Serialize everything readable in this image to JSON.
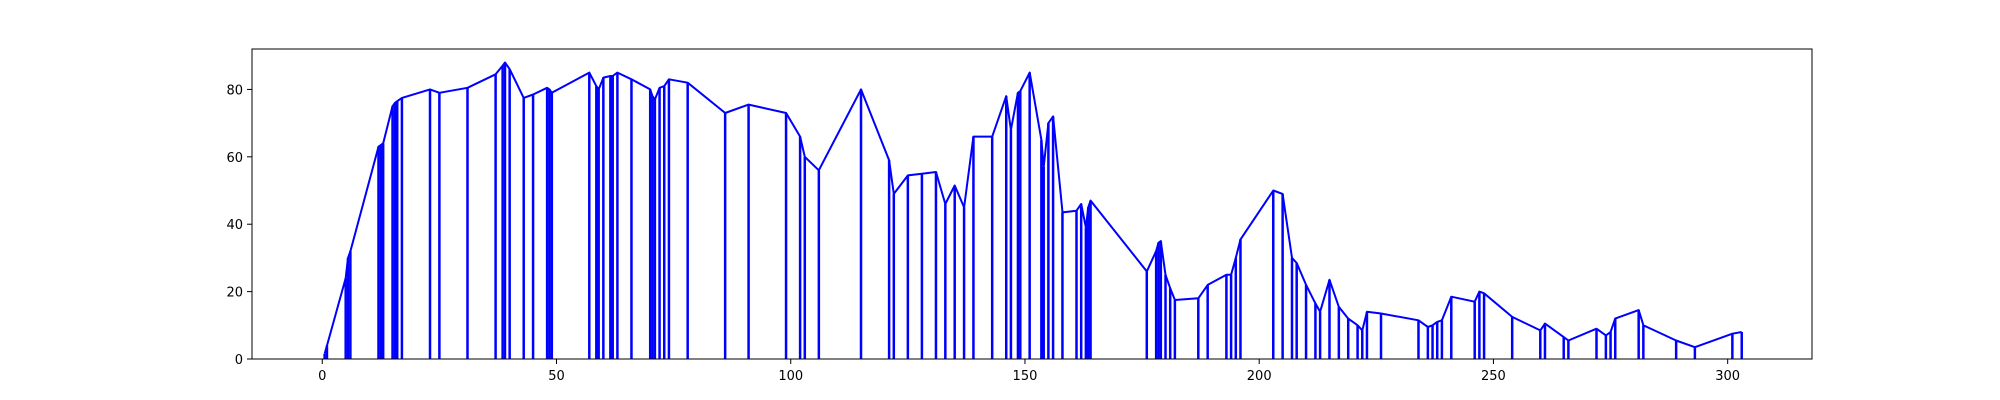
{
  "chart_data": {
    "type": "line",
    "title": "",
    "xlabel": "",
    "ylabel": "",
    "xlim": [
      -15,
      318
    ],
    "ylim": [
      0,
      92
    ],
    "x_ticks": [
      0,
      50,
      100,
      150,
      200,
      250,
      300
    ],
    "y_ticks": [
      0,
      20,
      40,
      60,
      80
    ],
    "grid": false,
    "legend": "none",
    "style": "vertical stems from y=0 to each point, connected by a polyline",
    "colors": {
      "series": "#0000ff",
      "axes": "#000000",
      "background": "#ffffff"
    },
    "series": [
      {
        "name": "",
        "points": [
          [
            0.5,
            1.5
          ],
          [
            1.0,
            4.0
          ],
          [
            5.0,
            24.0
          ],
          [
            5.5,
            30.0
          ],
          [
            6.0,
            32.0
          ],
          [
            12.0,
            63.0
          ],
          [
            12.5,
            63.5
          ],
          [
            13.0,
            64.0
          ],
          [
            15.0,
            75.0
          ],
          [
            15.5,
            76.0
          ],
          [
            16.0,
            76.5
          ],
          [
            17.0,
            77.5
          ],
          [
            23.0,
            80.0
          ],
          [
            25.0,
            79.0
          ],
          [
            31.0,
            80.5
          ],
          [
            37.0,
            84.5
          ],
          [
            38.5,
            87.0
          ],
          [
            39.0,
            88.0
          ],
          [
            40.0,
            86.0
          ],
          [
            43.0,
            77.5
          ],
          [
            45.0,
            78.5
          ],
          [
            48.0,
            80.5
          ],
          [
            48.5,
            80.0
          ],
          [
            49.0,
            79.0
          ],
          [
            57.0,
            85.0
          ],
          [
            58.5,
            81.0
          ],
          [
            59.0,
            80.0
          ],
          [
            60.0,
            83.5
          ],
          [
            61.5,
            84.0
          ],
          [
            62.0,
            84.0
          ],
          [
            63.0,
            85.0
          ],
          [
            66.0,
            83.0
          ],
          [
            70.0,
            80.0
          ],
          [
            70.5,
            78.0
          ],
          [
            71.0,
            77.0
          ],
          [
            72.0,
            80.5
          ],
          [
            73.0,
            81.0
          ],
          [
            74.0,
            83.0
          ],
          [
            78.0,
            82.0
          ],
          [
            86.0,
            73.0
          ],
          [
            91.0,
            75.5
          ],
          [
            99.0,
            73.0
          ],
          [
            102.0,
            66.0
          ],
          [
            103.0,
            60.0
          ],
          [
            106.0,
            56.0
          ],
          [
            115.0,
            80.0
          ],
          [
            121.0,
            59.0
          ],
          [
            122.0,
            49.0
          ],
          [
            125.0,
            54.5
          ],
          [
            128.0,
            55.0
          ],
          [
            131.0,
            55.5
          ],
          [
            133.0,
            46.0
          ],
          [
            135.0,
            51.5
          ],
          [
            137.0,
            45.0
          ],
          [
            139.0,
            66.0
          ],
          [
            143.0,
            66.0
          ],
          [
            146.0,
            78.0
          ],
          [
            147.0,
            68.0
          ],
          [
            148.5,
            79.0
          ],
          [
            149.0,
            79.5
          ],
          [
            151.0,
            85.0
          ],
          [
            153.5,
            65.0
          ],
          [
            154.0,
            57.0
          ],
          [
            155.0,
            70.0
          ],
          [
            156.0,
            72.0
          ],
          [
            158.0,
            43.5
          ],
          [
            161.0,
            44.0
          ],
          [
            162.0,
            46.0
          ],
          [
            163.0,
            39.0
          ],
          [
            163.5,
            45.0
          ],
          [
            164.0,
            47.0
          ],
          [
            176.0,
            26.0
          ],
          [
            178.0,
            32.0
          ],
          [
            178.5,
            34.5
          ],
          [
            179.0,
            35.0
          ],
          [
            180.0,
            25.0
          ],
          [
            181.0,
            21.0
          ],
          [
            182.0,
            17.5
          ],
          [
            187.0,
            18.0
          ],
          [
            189.0,
            22.0
          ],
          [
            193.0,
            25.0
          ],
          [
            194.0,
            25.0
          ],
          [
            195.0,
            30.0
          ],
          [
            196.0,
            35.5
          ],
          [
            203.0,
            50.0
          ],
          [
            205.0,
            49.0
          ],
          [
            207.0,
            30.0
          ],
          [
            208.0,
            28.5
          ],
          [
            210.0,
            22.0
          ],
          [
            212.0,
            16.5
          ],
          [
            213.0,
            14.0
          ],
          [
            215.0,
            23.5
          ],
          [
            217.0,
            15.5
          ],
          [
            219.0,
            12.0
          ],
          [
            221.0,
            10.0
          ],
          [
            222.0,
            8.5
          ],
          [
            223.0,
            14.0
          ],
          [
            226.0,
            13.5
          ],
          [
            234.0,
            11.5
          ],
          [
            236.0,
            9.5
          ],
          [
            237.0,
            10.0
          ],
          [
            238.0,
            11.0
          ],
          [
            239.0,
            11.5
          ],
          [
            241.0,
            18.5
          ],
          [
            246.0,
            17.0
          ],
          [
            247.0,
            20.0
          ],
          [
            248.0,
            19.5
          ],
          [
            254.0,
            12.5
          ],
          [
            260.0,
            8.5
          ],
          [
            261.0,
            10.5
          ],
          [
            265.0,
            6.5
          ],
          [
            266.0,
            5.5
          ],
          [
            272.0,
            9.0
          ],
          [
            274.0,
            7.0
          ],
          [
            275.0,
            8.0
          ],
          [
            276.0,
            12.0
          ],
          [
            281.0,
            14.5
          ],
          [
            282.0,
            10.0
          ],
          [
            289.0,
            5.5
          ],
          [
            293.0,
            3.5
          ],
          [
            301.0,
            7.5
          ],
          [
            303.0,
            8.0
          ]
        ]
      }
    ]
  }
}
